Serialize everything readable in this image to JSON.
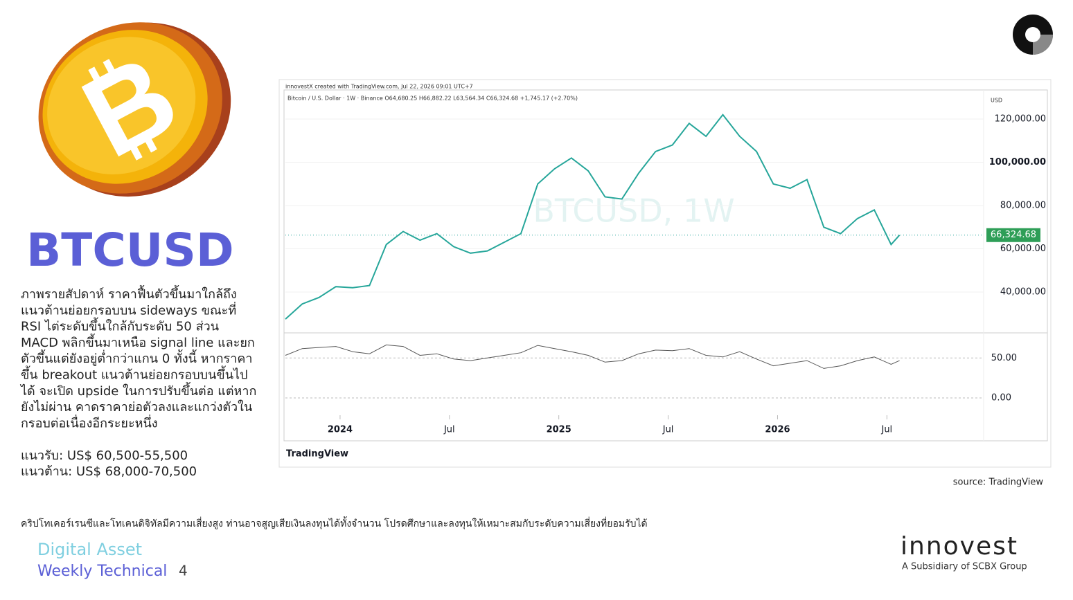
{
  "slide": {
    "title": "BTCUSD",
    "paragraph": [
      "ภาพรายสัปดาห์ ราคาฟื้นตัวขึ้นมาใกล้ถึง",
      "แนวต้านย่อยกรอบบน sideways ขณะที่",
      "RSI ไต่ระดับขึ้นใกล้กับระดับ 50 ส่วน",
      "MACD พลิกขึ้นมาเหนือ signal line และยก",
      "ตัวขึ้นแต่ยังอยู่ต่ำกว่าแกน 0 ทั้งนี้ หากราคา",
      "ขึ้น breakout แนวต้านย่อยกรอบบนขึ้นไป",
      "ได้ จะเปิด upside ในการปรับขึ้นต่อ แต่หาก",
      "ยังไม่ผ่าน คาดราคาย่อตัวลงและแกว่งตัวใน",
      "กรอบต่อเนื่องอีกระยะหนึ่ง"
    ],
    "support": "แนวรับ: US$ 60,500-55,500",
    "resistance": "แนวต้าน: US$ 68,000-70,500",
    "source": "source: TradingView",
    "disclaimer": "คริปโทเคอร์เรนซีและโทเคนดิจิทัลมีความเสี่ยงสูง ท่านอาจสูญเสียเงินลงทุนได้ทั้งจำนวน โปรดศึกษาและลงทุนให้เหมาะสมกับระดับความเสี่ยงที่ยอมรับได้",
    "footer_1": "Digital Asset",
    "footer_2": "Weekly Technical",
    "page": "4",
    "brand": "innovest",
    "brand_sub": "A Subsidiary of SCBX Group"
  },
  "chart_data": {
    "type": "line",
    "credit": "innovestX created with TradingView.com, Jul 22, 2026 09:01 UTC+7",
    "symbol": "Bitcoin / U.S. Dollar · 1W · Binance  O64,680.25 H66,882.22 L63,564.34 C66,324.68 +1,745.17 (+2.70%)",
    "watermark": "BTCUSD, 1W",
    "unit": "USD",
    "logo": "TradingView",
    "color": "#26a69a",
    "x": [
      0,
      4,
      8,
      12,
      16,
      20,
      24,
      28,
      32,
      36,
      40,
      44,
      48,
      52,
      56,
      60,
      64,
      68,
      72,
      76,
      80,
      84,
      88,
      92,
      96,
      100,
      104,
      108,
      112,
      116,
      120,
      124,
      128,
      132,
      136,
      140,
      144,
      146
    ],
    "values": [
      27500,
      34500,
      37500,
      42500,
      42000,
      43000,
      62000,
      68000,
      64000,
      67000,
      61000,
      58000,
      59000,
      63000,
      67000,
      90000,
      97000,
      102000,
      96000,
      84000,
      83000,
      95000,
      105000,
      108000,
      118000,
      112000,
      122000,
      112000,
      105000,
      90000,
      88000,
      92000,
      70000,
      67000,
      74000,
      78000,
      62000,
      66324.68
    ],
    "last_value_label": "66,324.68",
    "xlim": [
      0,
      166
    ],
    "xticks": [
      {
        "value": 13,
        "label": "2024"
      },
      {
        "value": 39,
        "label": "Jul"
      },
      {
        "value": 65,
        "label": "2025"
      },
      {
        "value": 91,
        "label": "Jul"
      },
      {
        "value": 117,
        "label": "2026"
      },
      {
        "value": 143,
        "label": "Jul"
      }
    ],
    "ylim": [
      21440,
      133440
    ],
    "yticks": [
      {
        "value": 40000,
        "label": "40,000.00"
      },
      {
        "value": 60000,
        "label": "60,000.00"
      },
      {
        "value": 80000,
        "label": "80,000.00"
      },
      {
        "value": 100000,
        "label": "100,000.00"
      },
      {
        "value": 120000,
        "label": "120,000.00"
      }
    ],
    "rsi": {
      "color": "#555555",
      "values": [
        55,
        68,
        70,
        72,
        62,
        58,
        75,
        72,
        55,
        58,
        48,
        45,
        50,
        55,
        60,
        74,
        68,
        62,
        55,
        42,
        45,
        58,
        65,
        64,
        68,
        55,
        52,
        62,
        48,
        35,
        40,
        45,
        30,
        35,
        45,
        52,
        38,
        45
      ],
      "ylim": [
        20,
        90
      ],
      "yticks": [
        {
          "value": 50,
          "label": "50.00"
        }
      ]
    },
    "macd": {
      "ylim": [
        -4000,
        4000
      ],
      "yticks": [
        {
          "value": 0,
          "label": "0.00"
        }
      ]
    }
  }
}
